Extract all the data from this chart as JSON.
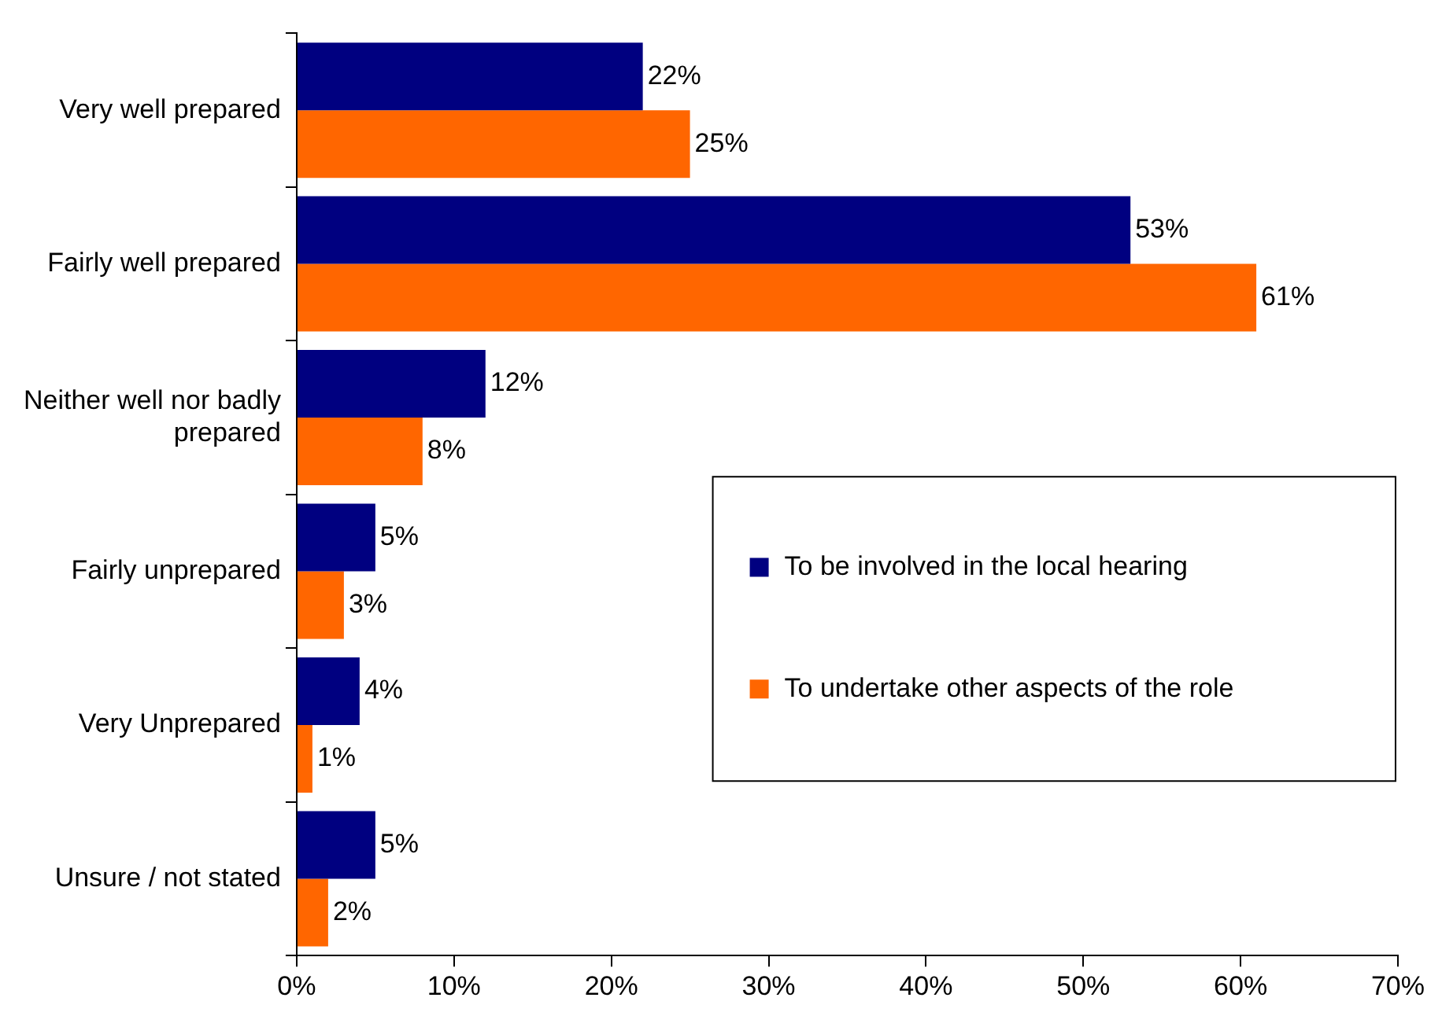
{
  "chart_data": {
    "type": "bar",
    "orientation": "horizontal",
    "categories": [
      "Very well prepared",
      "Fairly well prepared",
      "Neither well nor badly prepared",
      "Fairly unprepared",
      "Very Unprepared",
      "Unsure / not stated"
    ],
    "series": [
      {
        "name": "To be involved in the local hearing",
        "color": "#000080",
        "values": [
          22,
          53,
          12,
          5,
          4,
          5
        ],
        "value_labels": [
          "22%",
          "53%",
          "12%",
          "5%",
          "4%",
          "5%"
        ]
      },
      {
        "name": "To undertake other aspects of the role",
        "color": "#ff6600",
        "values": [
          25,
          61,
          8,
          3,
          1,
          2
        ],
        "value_labels": [
          "25%",
          "61%",
          "8%",
          "3%",
          "1%",
          "2%"
        ]
      }
    ],
    "xlim": [
      0,
      70
    ],
    "xticks": [
      {
        "value": 0,
        "label": "0%"
      },
      {
        "value": 10,
        "label": "10%"
      },
      {
        "value": 20,
        "label": "20%"
      },
      {
        "value": 30,
        "label": "30%"
      },
      {
        "value": 40,
        "label": "40%"
      },
      {
        "value": 50,
        "label": "50%"
      },
      {
        "value": 60,
        "label": "60%"
      },
      {
        "value": 70,
        "label": "70%"
      }
    ],
    "grid": false,
    "legend": "right"
  }
}
